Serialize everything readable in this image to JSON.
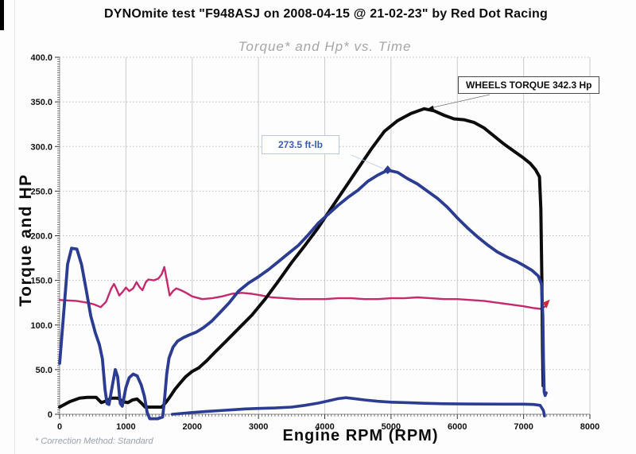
{
  "page": {
    "title": "DYNOmite test \"F948ASJ on 2008-04-15 @ 21-02-23\" by Red Dot Racing",
    "footnote": "* Correction Method: Standard"
  },
  "chart_data": {
    "type": "line",
    "title": "Torque* and Hp* vs. Time",
    "xlabel": "Engine RPM (RPM)",
    "ylabel": "Torque and HP",
    "xlim": [
      0,
      8000
    ],
    "ylim": [
      0,
      400
    ],
    "grid": "major",
    "legend": "none",
    "x_ticks": {
      "values": [
        0,
        1000,
        2000,
        3000,
        4000,
        5000,
        6000,
        7000,
        8000
      ],
      "labels": [
        "0",
        "1000",
        "2000",
        "3000",
        "4000",
        "5000",
        "6000",
        "7000",
        "8000"
      ]
    },
    "y_ticks": {
      "values": [
        0,
        50,
        100,
        150,
        200,
        250,
        300,
        350,
        400
      ],
      "labels": [
        "0",
        "50.0",
        "100.0",
        "150.0",
        "200.0",
        "250.0",
        "300.0",
        "350.0",
        "400.0"
      ]
    },
    "annotations": [
      {
        "label": "WHEELS TORQUE 342.3 Hp",
        "anchor_rpm": 5500,
        "anchor_value": 342.3
      },
      {
        "label": "273.5 ft-lb",
        "anchor_rpm": 4950,
        "anchor_value": 273.5
      }
    ],
    "end_marker": {
      "anchor_rpm": 7360,
      "anchor_value": 124,
      "color": "#cf2a3a"
    },
    "series": [
      {
        "id": "pink-aux",
        "name": "pink trace",
        "color": "#c42a6e",
        "width": 2.4,
        "points": [
          [
            0,
            128
          ],
          [
            250,
            127
          ],
          [
            420,
            125
          ],
          [
            520,
            123
          ],
          [
            620,
            120
          ],
          [
            700,
            126
          ],
          [
            780,
            141
          ],
          [
            820,
            146
          ],
          [
            860,
            140
          ],
          [
            900,
            133
          ],
          [
            950,
            137
          ],
          [
            1000,
            142
          ],
          [
            1050,
            138
          ],
          [
            1110,
            141
          ],
          [
            1160,
            148
          ],
          [
            1210,
            142
          ],
          [
            1250,
            139
          ],
          [
            1300,
            148
          ],
          [
            1340,
            151
          ],
          [
            1420,
            150
          ],
          [
            1490,
            152
          ],
          [
            1540,
            157
          ],
          [
            1580,
            165
          ],
          [
            1620,
            149
          ],
          [
            1660,
            133
          ],
          [
            1710,
            138
          ],
          [
            1760,
            141
          ],
          [
            1830,
            139
          ],
          [
            1910,
            136
          ],
          [
            2000,
            132
          ],
          [
            2150,
            129
          ],
          [
            2300,
            130
          ],
          [
            2450,
            132
          ],
          [
            2600,
            135
          ],
          [
            2750,
            136
          ],
          [
            2900,
            135
          ],
          [
            3050,
            133
          ],
          [
            3200,
            131
          ],
          [
            3400,
            130
          ],
          [
            3600,
            129
          ],
          [
            3800,
            129
          ],
          [
            4000,
            129
          ],
          [
            4200,
            130
          ],
          [
            4400,
            130
          ],
          [
            4600,
            129
          ],
          [
            4800,
            129
          ],
          [
            5000,
            130
          ],
          [
            5200,
            130
          ],
          [
            5400,
            131
          ],
          [
            5600,
            130
          ],
          [
            5800,
            129
          ],
          [
            6000,
            129
          ],
          [
            6200,
            128
          ],
          [
            6400,
            127
          ],
          [
            6600,
            125
          ],
          [
            6800,
            123
          ],
          [
            7000,
            121
          ],
          [
            7150,
            119
          ],
          [
            7260,
            118
          ],
          [
            7330,
            121
          ],
          [
            7360,
            124
          ]
        ]
      },
      {
        "id": "low-blue-aux",
        "name": "low blue trace",
        "color": "#2b3c92",
        "width": 3.6,
        "points": [
          [
            1700,
            0
          ],
          [
            1850,
            1
          ],
          [
            2000,
            2
          ],
          [
            2200,
            3
          ],
          [
            2400,
            4
          ],
          [
            2600,
            5
          ],
          [
            2800,
            6
          ],
          [
            3000,
            6.5
          ],
          [
            3250,
            7
          ],
          [
            3500,
            8
          ],
          [
            3700,
            10
          ],
          [
            3900,
            12.5
          ],
          [
            4050,
            15
          ],
          [
            4200,
            17.5
          ],
          [
            4320,
            18.5
          ],
          [
            4450,
            17.5
          ],
          [
            4600,
            16
          ],
          [
            4800,
            14.5
          ],
          [
            5000,
            13.5
          ],
          [
            5250,
            13
          ],
          [
            5500,
            12.3
          ],
          [
            5800,
            11.8
          ],
          [
            6100,
            11.5
          ],
          [
            6400,
            11.4
          ],
          [
            6700,
            11.3
          ],
          [
            7000,
            11.3
          ],
          [
            7150,
            11
          ],
          [
            7250,
            10
          ],
          [
            7300,
            4
          ],
          [
            7315,
            -2
          ]
        ]
      },
      {
        "id": "hp-black",
        "name": "wheels horsepower",
        "color": "#0c0c0c",
        "width": 4,
        "points": [
          [
            0,
            8
          ],
          [
            150,
            14
          ],
          [
            300,
            18
          ],
          [
            420,
            19
          ],
          [
            550,
            19
          ],
          [
            630,
            13
          ],
          [
            700,
            15
          ],
          [
            780,
            18
          ],
          [
            880,
            18
          ],
          [
            960,
            14
          ],
          [
            1030,
            13
          ],
          [
            1100,
            16
          ],
          [
            1170,
            17
          ],
          [
            1240,
            12
          ],
          [
            1290,
            8
          ],
          [
            1420,
            8
          ],
          [
            1540,
            8
          ],
          [
            1600,
            13
          ],
          [
            1660,
            19
          ],
          [
            1740,
            28
          ],
          [
            1820,
            35
          ],
          [
            1900,
            42
          ],
          [
            2000,
            48
          ],
          [
            2100,
            52
          ],
          [
            2220,
            60
          ],
          [
            2350,
            70
          ],
          [
            2500,
            81
          ],
          [
            2700,
            96
          ],
          [
            2900,
            111
          ],
          [
            3100,
            129
          ],
          [
            3300,
            149
          ],
          [
            3500,
            170
          ],
          [
            3700,
            189
          ],
          [
            3900,
            209
          ],
          [
            4100,
            231
          ],
          [
            4300,
            253
          ],
          [
            4500,
            275
          ],
          [
            4700,
            297
          ],
          [
            4900,
            317
          ],
          [
            5100,
            329
          ],
          [
            5300,
            337
          ],
          [
            5500,
            342.3
          ],
          [
            5650,
            340
          ],
          [
            5800,
            335
          ],
          [
            5950,
            331
          ],
          [
            6100,
            330
          ],
          [
            6250,
            327
          ],
          [
            6400,
            321
          ],
          [
            6550,
            312
          ],
          [
            6700,
            303
          ],
          [
            6850,
            295
          ],
          [
            7000,
            287
          ],
          [
            7100,
            281
          ],
          [
            7180,
            274
          ],
          [
            7240,
            266
          ],
          [
            7260,
            230
          ],
          [
            7275,
            150
          ],
          [
            7285,
            75
          ],
          [
            7295,
            32
          ]
        ]
      },
      {
        "id": "torque-blue",
        "name": "wheels torque",
        "color": "#2b3c92",
        "width": 3.8,
        "points": [
          [
            0,
            57
          ],
          [
            60,
            112
          ],
          [
            120,
            168
          ],
          [
            180,
            186
          ],
          [
            260,
            185
          ],
          [
            330,
            168
          ],
          [
            400,
            140
          ],
          [
            470,
            110
          ],
          [
            540,
            91
          ],
          [
            600,
            78
          ],
          [
            645,
            62
          ],
          [
            685,
            28
          ],
          [
            715,
            12
          ],
          [
            745,
            11
          ],
          [
            790,
            30
          ],
          [
            840,
            50
          ],
          [
            875,
            42
          ],
          [
            915,
            12
          ],
          [
            945,
            9
          ],
          [
            1000,
            30
          ],
          [
            1050,
            41
          ],
          [
            1110,
            45
          ],
          [
            1170,
            43
          ],
          [
            1230,
            33
          ],
          [
            1280,
            20
          ],
          [
            1320,
            2
          ],
          [
            1360,
            -5
          ],
          [
            1480,
            -5
          ],
          [
            1555,
            -3
          ],
          [
            1585,
            18
          ],
          [
            1615,
            45
          ],
          [
            1650,
            63
          ],
          [
            1710,
            75
          ],
          [
            1780,
            82
          ],
          [
            1870,
            86
          ],
          [
            1960,
            89
          ],
          [
            2060,
            92
          ],
          [
            2170,
            97
          ],
          [
            2290,
            104
          ],
          [
            2420,
            114
          ],
          [
            2560,
            125
          ],
          [
            2700,
            138
          ],
          [
            2850,
            147
          ],
          [
            3000,
            154
          ],
          [
            3150,
            162
          ],
          [
            3300,
            171
          ],
          [
            3450,
            180
          ],
          [
            3600,
            189
          ],
          [
            3750,
            201
          ],
          [
            3900,
            214
          ],
          [
            4050,
            224
          ],
          [
            4200,
            234
          ],
          [
            4350,
            243
          ],
          [
            4500,
            251
          ],
          [
            4650,
            261
          ],
          [
            4800,
            268
          ],
          [
            4950,
            273.5
          ],
          [
            5100,
            271
          ],
          [
            5250,
            264
          ],
          [
            5400,
            258
          ],
          [
            5550,
            250
          ],
          [
            5700,
            242
          ],
          [
            5850,
            232
          ],
          [
            6000,
            220
          ],
          [
            6150,
            209
          ],
          [
            6300,
            199
          ],
          [
            6450,
            190
          ],
          [
            6600,
            182
          ],
          [
            6750,
            176
          ],
          [
            6900,
            171
          ],
          [
            7020,
            166
          ],
          [
            7130,
            161
          ],
          [
            7220,
            155
          ],
          [
            7270,
            146
          ],
          [
            7290,
            110
          ],
          [
            7300,
            60
          ],
          [
            7310,
            25
          ],
          [
            7325,
            21
          ],
          [
            7340,
            24
          ]
        ]
      }
    ]
  }
}
